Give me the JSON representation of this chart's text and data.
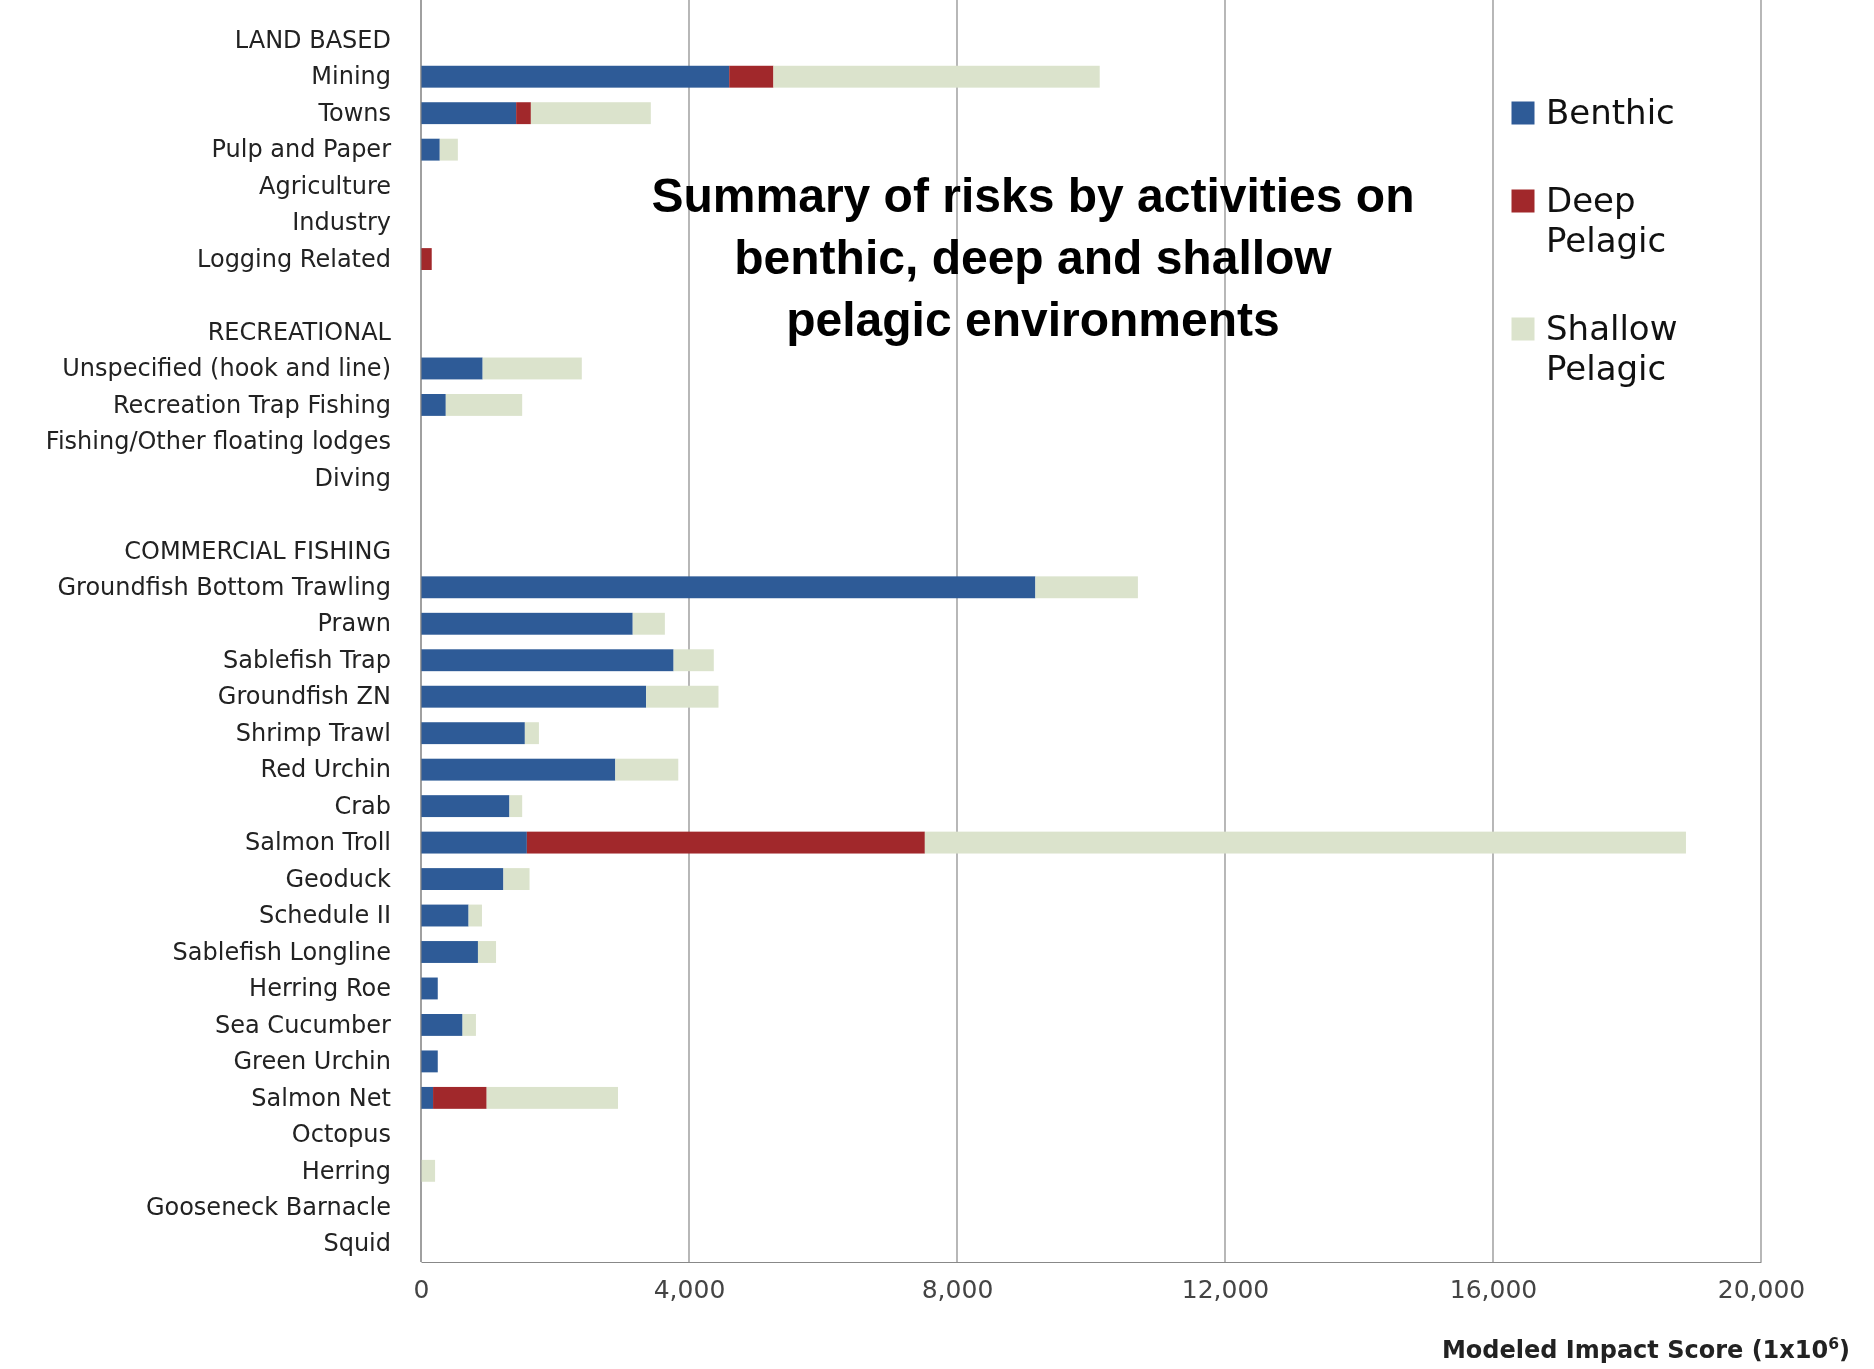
{
  "chart_data": {
    "type": "bar",
    "orientation": "horizontal",
    "stacked": true,
    "title": "Summary of risks by activities on benthic, deep and shallow pelagic environments",
    "xlabel": "Modeled Impact Score (1x10$^{6}$)",
    "categories": [
      "LAND BASED",
      "Mining",
      "Towns",
      "Pulp and Paper",
      "Agriculture",
      "Industry",
      "Logging Related",
      null,
      "RECREATIONAL",
      "Unspecified (hook and line)",
      "Recreation Trap Fishing",
      "Fishing/Other floating lodges",
      "Diving",
      null,
      "COMMERCIAL FISHING",
      "Groundfish Bottom Trawling",
      "Prawn",
      "Sablefish Trap",
      "Groundfish ZN",
      "Shrimp Trawl",
      "Red Urchin",
      "Crab",
      "Salmon Troll",
      "Geoduck",
      "Schedule II",
      "Sablefish Longline",
      "Herring Roe",
      "Sea Cucumber",
      "Green Urchin",
      "Salmon Net",
      "Octopus",
      "Herring",
      "Gooseneck Barnacle",
      "Squid"
    ],
    "series": [
      {
        "name": "Benthic",
        "color": "#2e5b97",
        "values": [
          null,
          4600,
          1420,
          280,
          0,
          0,
          0,
          null,
          null,
          920,
          370,
          0,
          0,
          null,
          null,
          9170,
          3160,
          3770,
          3360,
          1550,
          2900,
          1320,
          1580,
          1230,
          710,
          850,
          250,
          620,
          250,
          180,
          0,
          0,
          0,
          0
        ]
      },
      {
        "name": "Deep Pelagic",
        "color": "#a1282b",
        "values": [
          null,
          660,
          220,
          0,
          0,
          0,
          160,
          null,
          null,
          0,
          0,
          0,
          0,
          null,
          null,
          0,
          0,
          0,
          0,
          0,
          0,
          0,
          5940,
          0,
          0,
          0,
          0,
          0,
          0,
          800,
          0,
          0,
          0,
          0
        ]
      },
      {
        "name": "Shallow Pelagic",
        "color": "#dbe3cc",
        "values": [
          null,
          4870,
          1790,
          270,
          0,
          0,
          0,
          null,
          null,
          1480,
          1140,
          0,
          0,
          null,
          null,
          1530,
          480,
          600,
          1080,
          210,
          940,
          190,
          11360,
          390,
          200,
          270,
          0,
          200,
          0,
          1960,
          0,
          210,
          0,
          0
        ]
      }
    ],
    "xlim": [
      0,
      20000
    ],
    "xticks": [
      0,
      {
        "value": 4000,
        "label": "4,000"
      },
      {
        "value": 8000,
        "label": "8,000"
      },
      {
        "value": 12000,
        "label": "12,000"
      },
      {
        "value": 16000,
        "label": "16,000"
      },
      {
        "value": 20000,
        "label": "20,000"
      }
    ],
    "grid": "x",
    "legend": "top right"
  }
}
